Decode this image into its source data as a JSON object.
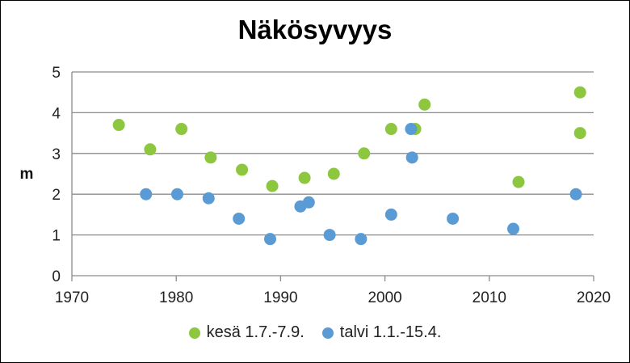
{
  "chart_data": {
    "type": "scatter",
    "title": "Näkösyvyys",
    "xlabel": "",
    "ylabel": "m",
    "xlim": [
      1970,
      2020
    ],
    "ylim": [
      0,
      5
    ],
    "xticks": [
      1970,
      1980,
      1990,
      2000,
      2010,
      2020
    ],
    "yticks": [
      0,
      1,
      2,
      3,
      4,
      5
    ],
    "grid": "horizontal",
    "legend": "bottom",
    "series": [
      {
        "name": "kesä 1.7.-7.9.",
        "color": "#8DC63F",
        "points": [
          [
            1974.5,
            3.7
          ],
          [
            1977.5,
            3.1
          ],
          [
            1980.5,
            3.6
          ],
          [
            1983.3,
            2.9
          ],
          [
            1986.3,
            2.6
          ],
          [
            1989.2,
            2.2
          ],
          [
            1992.3,
            2.4
          ],
          [
            1995.1,
            2.5
          ],
          [
            1998.0,
            3.0
          ],
          [
            2000.6,
            3.6
          ],
          [
            2002.9,
            3.6
          ],
          [
            2003.8,
            4.2
          ],
          [
            2012.8,
            2.3
          ],
          [
            2018.7,
            4.5
          ],
          [
            2018.7,
            3.5
          ]
        ]
      },
      {
        "name": "talvi 1.1.-15.4.",
        "color": "#5B9BD5",
        "points": [
          [
            1977.1,
            2.0
          ],
          [
            1980.1,
            2.0
          ],
          [
            1983.1,
            1.9
          ],
          [
            1986.0,
            1.4
          ],
          [
            1989.0,
            0.9
          ],
          [
            1991.9,
            1.7
          ],
          [
            1992.7,
            1.8
          ],
          [
            1994.7,
            1.0
          ],
          [
            1997.7,
            0.9
          ],
          [
            2000.6,
            1.5
          ],
          [
            2002.5,
            3.6
          ],
          [
            2002.6,
            2.9
          ],
          [
            2006.5,
            1.4
          ],
          [
            2012.3,
            1.15
          ],
          [
            2018.3,
            2.0
          ]
        ]
      }
    ]
  }
}
